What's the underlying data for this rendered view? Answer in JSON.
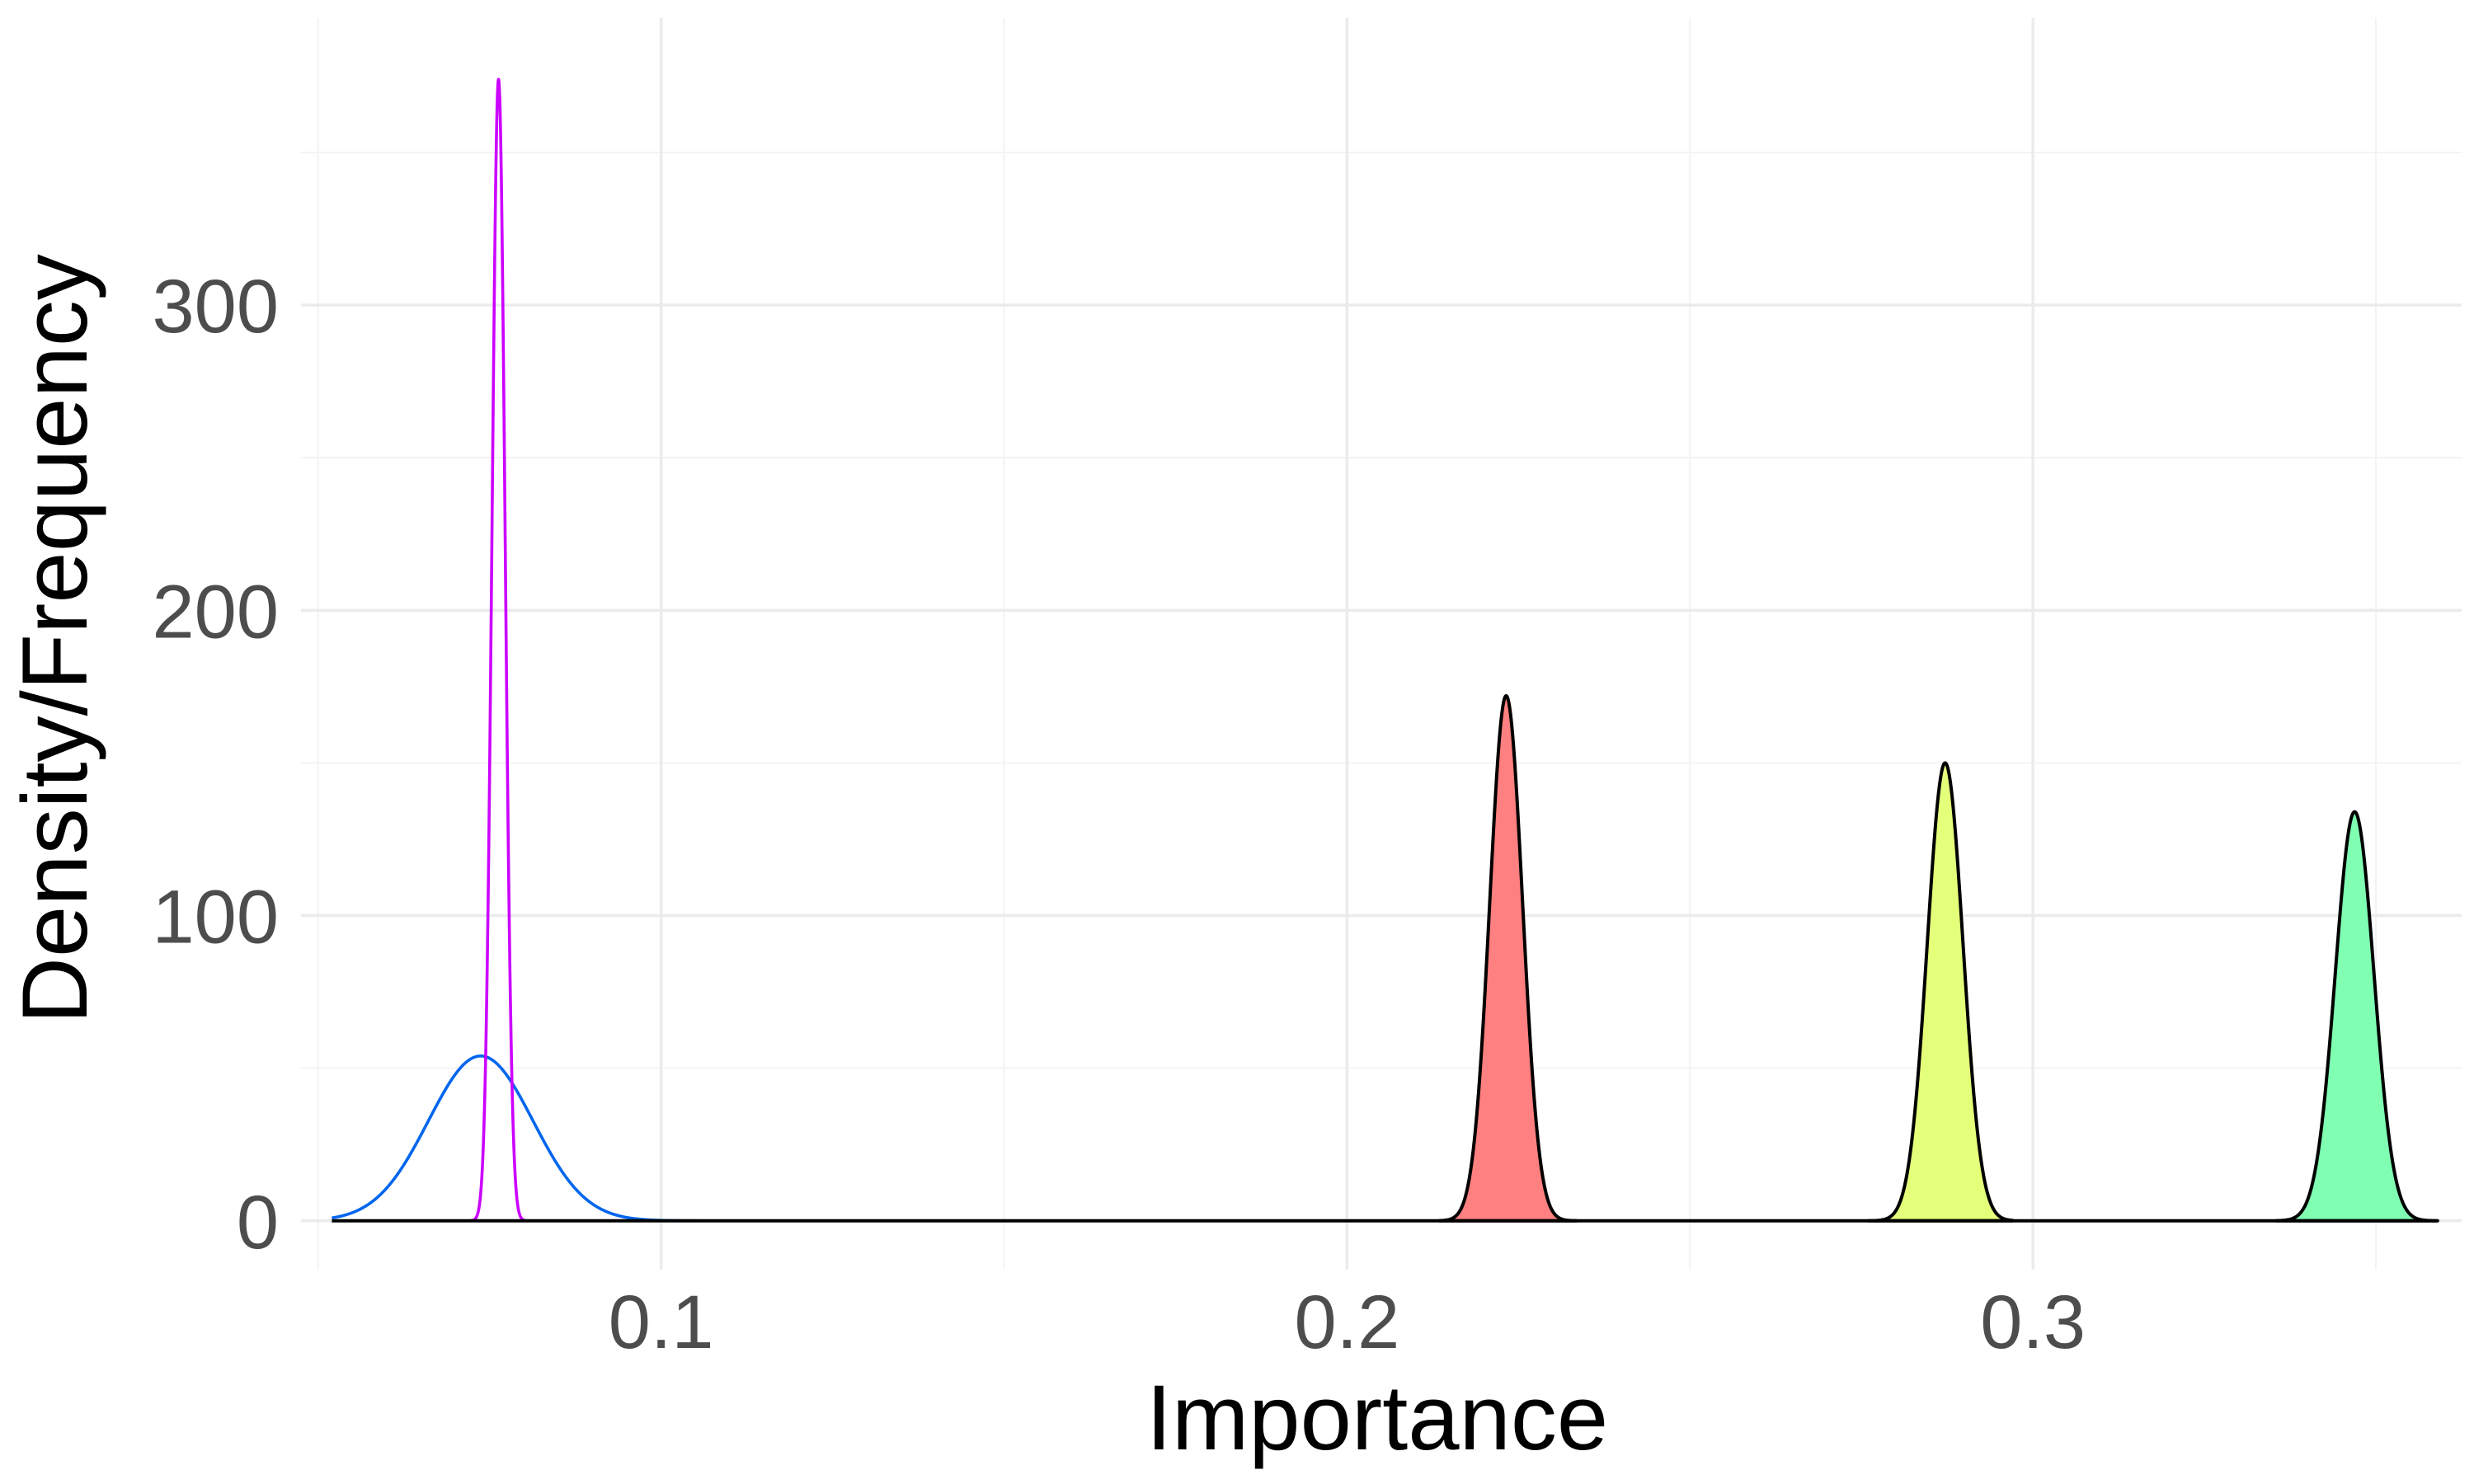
{
  "chart_data": {
    "type": "area",
    "title": "",
    "xlabel": "Importance",
    "ylabel": "Density/Frequency",
    "xlim": [
      0.0475,
      0.3625
    ],
    "ylim": [
      -16,
      394
    ],
    "x_ticks": [
      0.1,
      0.2,
      0.3
    ],
    "x_tick_labels": [
      "0.1",
      "0.2",
      "0.3"
    ],
    "x_minor_ticks": [
      0.05,
      0.15,
      0.25,
      0.35
    ],
    "y_ticks": [
      0,
      100,
      200,
      300
    ],
    "y_tick_labels": [
      "0",
      "100",
      "200",
      "300"
    ],
    "y_minor_ticks": [
      50,
      150,
      250,
      350
    ],
    "grid": true,
    "legend": "none",
    "baseline": {
      "x": [
        0.052,
        0.359
      ],
      "y": 0,
      "color": "#000000"
    },
    "series": [
      {
        "kind": "line",
        "color": "#0066ee",
        "fill": "none",
        "mean": 0.0737,
        "peak": 54,
        "x_range": [
          0.052,
          0.1065
        ]
      },
      {
        "kind": "line",
        "color": "#cc00ff",
        "fill": "none",
        "mean": 0.0763,
        "peak": 374,
        "x_range": [
          0.0722,
          0.0803
        ]
      },
      {
        "kind": "area",
        "color": "#000000",
        "fill": "#ff8080",
        "mean": 0.2232,
        "peak": 172,
        "x_range": [
          0.2135,
          0.2335
        ]
      },
      {
        "kind": "area",
        "color": "#000000",
        "fill": "#e4ff7a",
        "mean": 0.2872,
        "peak": 150,
        "x_range": [
          0.276,
          0.297
        ]
      },
      {
        "kind": "area",
        "color": "#000000",
        "fill": "#80ffb3",
        "mean": 0.3469,
        "peak": 134,
        "x_range": [
          0.3355,
          0.359
        ]
      }
    ]
  }
}
